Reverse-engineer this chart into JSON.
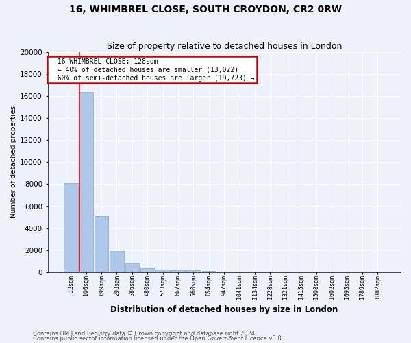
{
  "title": "16, WHIMBREL CLOSE, SOUTH CROYDON, CR2 0RW",
  "subtitle": "Size of property relative to detached houses in London",
  "xlabel": "Distribution of detached houses by size in London",
  "ylabel": "Number of detached properties",
  "categories": [
    "12sqm",
    "106sqm",
    "199sqm",
    "293sqm",
    "386sqm",
    "480sqm",
    "573sqm",
    "667sqm",
    "760sqm",
    "854sqm",
    "947sqm",
    "1041sqm",
    "1134sqm",
    "1228sqm",
    "1321sqm",
    "1415sqm",
    "1508sqm",
    "1602sqm",
    "1695sqm",
    "1789sqm",
    "1882sqm"
  ],
  "values": [
    8100,
    16400,
    5100,
    1900,
    800,
    380,
    230,
    180,
    160,
    130,
    0,
    0,
    0,
    0,
    0,
    0,
    0,
    0,
    0,
    0,
    0
  ],
  "bar_color": "#aec6e8",
  "bar_edge_color": "#7aadd4",
  "annotation_title": "16 WHIMBREL CLOSE: 128sqm",
  "annotation_line1": "← 40% of detached houses are smaller (13,022)",
  "annotation_line2": "60% of semi-detached houses are larger (19,723) →",
  "annotation_box_color": "#ffffff",
  "annotation_box_edge": "#cc0000",
  "footer1": "Contains HM Land Registry data © Crown copyright and database right 2024.",
  "footer2": "Contains public sector information licensed under the Open Government Licence v3.0.",
  "ylim": [
    0,
    20000
  ],
  "yticks": [
    0,
    2000,
    4000,
    6000,
    8000,
    10000,
    12000,
    14000,
    16000,
    18000,
    20000
  ],
  "background_color": "#edf1f9",
  "grid_color": "#ffffff",
  "title_fontsize": 10,
  "subtitle_fontsize": 9
}
